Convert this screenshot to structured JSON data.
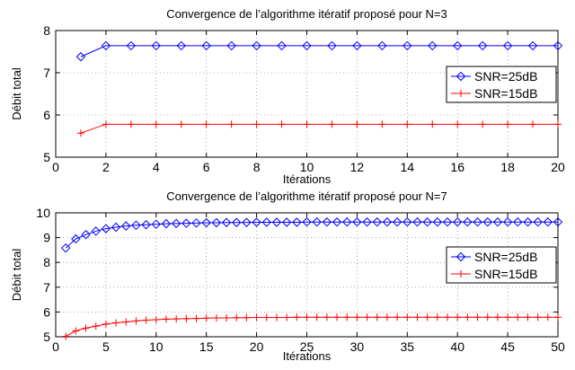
{
  "chart_data": [
    {
      "type": "line",
      "title": "Convergence de l’algorithme itératif proposé pour N=3",
      "xlabel": "Itérations",
      "ylabel": "Débit total",
      "xlim": [
        0,
        20
      ],
      "ylim": [
        5,
        8
      ],
      "xticks": [
        "0",
        "2",
        "4",
        "6",
        "8",
        "10",
        "12",
        "14",
        "16",
        "18",
        "20"
      ],
      "yticks": [
        "5",
        "6",
        "7",
        "8"
      ],
      "grid": true,
      "legend": "right",
      "x": [
        1,
        2,
        3,
        4,
        5,
        6,
        7,
        8,
        9,
        10,
        11,
        12,
        13,
        14,
        15,
        16,
        17,
        18,
        19,
        20
      ],
      "series": [
        {
          "name": "SNR=25dB",
          "color": "#0000ff",
          "marker": "diamond",
          "values": [
            7.38,
            7.64,
            7.64,
            7.64,
            7.64,
            7.64,
            7.64,
            7.64,
            7.64,
            7.64,
            7.64,
            7.64,
            7.64,
            7.64,
            7.64,
            7.64,
            7.64,
            7.64,
            7.64,
            7.64
          ]
        },
        {
          "name": "SNR=15dB",
          "color": "#ff0000",
          "marker": "plus",
          "values": [
            5.57,
            5.78,
            5.78,
            5.78,
            5.78,
            5.78,
            5.78,
            5.78,
            5.78,
            5.78,
            5.78,
            5.78,
            5.78,
            5.78,
            5.78,
            5.78,
            5.78,
            5.78,
            5.78,
            5.78
          ]
        }
      ]
    },
    {
      "type": "line",
      "title": "Convergence de l’algorithme itératif proposé pour N=7",
      "xlabel": "Itérations",
      "ylabel": "Débit total",
      "xlim": [
        0,
        50
      ],
      "ylim": [
        5,
        10
      ],
      "xticks": [
        "0",
        "5",
        "10",
        "15",
        "20",
        "25",
        "30",
        "35",
        "40",
        "45",
        "50"
      ],
      "yticks": [
        "5",
        "6",
        "7",
        "8",
        "9",
        "10"
      ],
      "grid": true,
      "legend": "right",
      "x": [
        1,
        2,
        3,
        4,
        5,
        6,
        7,
        8,
        9,
        10,
        11,
        12,
        13,
        14,
        15,
        16,
        17,
        18,
        19,
        20,
        21,
        22,
        23,
        24,
        25,
        26,
        27,
        28,
        29,
        30,
        31,
        32,
        33,
        34,
        35,
        36,
        37,
        38,
        39,
        40,
        41,
        42,
        43,
        44,
        45,
        46,
        47,
        48,
        49,
        50
      ],
      "series": [
        {
          "name": "SNR=25dB",
          "color": "#0000ff",
          "marker": "diamond",
          "values": [
            8.58,
            8.95,
            9.12,
            9.26,
            9.36,
            9.42,
            9.47,
            9.5,
            9.52,
            9.54,
            9.56,
            9.57,
            9.58,
            9.59,
            9.6,
            9.6,
            9.61,
            9.61,
            9.61,
            9.62,
            9.62,
            9.62,
            9.62,
            9.62,
            9.63,
            9.63,
            9.63,
            9.63,
            9.63,
            9.63,
            9.63,
            9.63,
            9.63,
            9.63,
            9.63,
            9.63,
            9.63,
            9.63,
            9.63,
            9.63,
            9.63,
            9.63,
            9.63,
            9.63,
            9.63,
            9.63,
            9.63,
            9.63,
            9.63,
            9.63
          ]
        },
        {
          "name": "SNR=15dB",
          "color": "#ff0000",
          "marker": "plus",
          "values": [
            5.02,
            5.24,
            5.35,
            5.43,
            5.51,
            5.56,
            5.6,
            5.64,
            5.67,
            5.69,
            5.71,
            5.72,
            5.73,
            5.74,
            5.75,
            5.76,
            5.76,
            5.77,
            5.77,
            5.78,
            5.78,
            5.78,
            5.78,
            5.79,
            5.79,
            5.79,
            5.79,
            5.79,
            5.79,
            5.79,
            5.79,
            5.79,
            5.79,
            5.79,
            5.79,
            5.79,
            5.79,
            5.79,
            5.79,
            5.79,
            5.79,
            5.79,
            5.79,
            5.79,
            5.79,
            5.79,
            5.79,
            5.79,
            5.79,
            5.79
          ]
        }
      ]
    }
  ]
}
